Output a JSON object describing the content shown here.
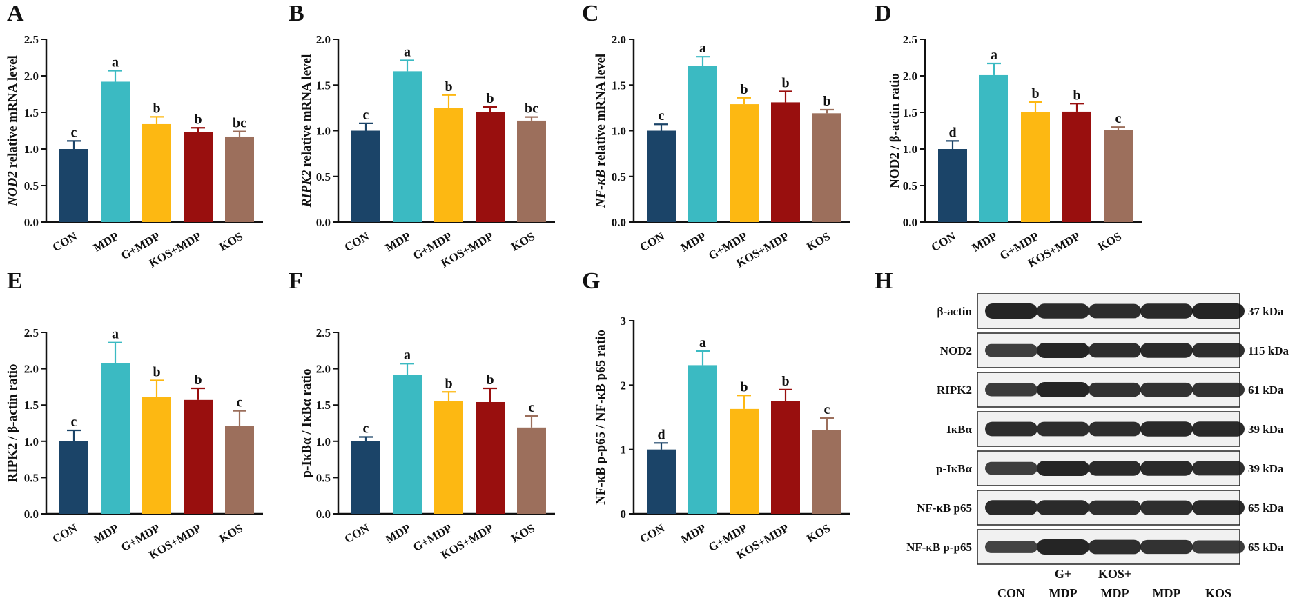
{
  "colors": {
    "CON": "#1b4468",
    "MDP": "#3bbac2",
    "G+MDP": "#fdb812",
    "KOS+MDP": "#990f0e",
    "KOS": "#9c6f5c",
    "axis": "#111111"
  },
  "chart_data": [
    {
      "panel": "A",
      "type": "bar",
      "ylabel_italic": "NOD2",
      "ylabel_rest": " relative mRNA level",
      "categories": [
        "CON",
        "MDP",
        "G+MDP",
        "KOS+MDP",
        "KOS"
      ],
      "values": [
        1.0,
        1.92,
        1.34,
        1.23,
        1.17
      ],
      "errors": [
        0.11,
        0.15,
        0.1,
        0.06,
        0.07
      ],
      "letters": [
        "c",
        "a",
        "b",
        "b",
        "bc"
      ],
      "ylim": [
        0,
        2.5
      ],
      "ticks": [
        "0.0",
        "0.5",
        "1.0",
        "1.5",
        "2.0",
        "2.5"
      ]
    },
    {
      "panel": "B",
      "type": "bar",
      "ylabel_italic": "RIPK2",
      "ylabel_rest": " relative mRNA level",
      "categories": [
        "CON",
        "MDP",
        "G+MDP",
        "KOS+MDP",
        "KOS"
      ],
      "values": [
        1.0,
        1.65,
        1.25,
        1.2,
        1.11
      ],
      "errors": [
        0.08,
        0.12,
        0.14,
        0.06,
        0.04
      ],
      "letters": [
        "c",
        "a",
        "b",
        "b",
        "bc"
      ],
      "ylim": [
        0,
        2.0
      ],
      "ticks": [
        "0.0",
        "0.5",
        "1.0",
        "1.5",
        "2.0"
      ]
    },
    {
      "panel": "C",
      "type": "bar",
      "ylabel_italic": "NF-κB",
      "ylabel_rest": " relative mRNA level",
      "categories": [
        "CON",
        "MDP",
        "G+MDP",
        "KOS+MDP",
        "KOS"
      ],
      "values": [
        1.0,
        1.71,
        1.29,
        1.31,
        1.19
      ],
      "errors": [
        0.07,
        0.1,
        0.07,
        0.12,
        0.04
      ],
      "letters": [
        "c",
        "a",
        "b",
        "b",
        "b"
      ],
      "ylim": [
        0,
        2.0
      ],
      "ticks": [
        "0.0",
        "0.5",
        "1.0",
        "1.5",
        "2.0"
      ]
    },
    {
      "panel": "D",
      "type": "bar",
      "ylabel_italic": "",
      "ylabel_rest": "NOD2 / β-actin ratio",
      "categories": [
        "CON",
        "MDP",
        "G+MDP",
        "KOS+MDP",
        "KOS"
      ],
      "values": [
        1.0,
        2.01,
        1.5,
        1.51,
        1.26
      ],
      "errors": [
        0.11,
        0.16,
        0.14,
        0.11,
        0.04
      ],
      "letters": [
        "d",
        "a",
        "b",
        "b",
        "c"
      ],
      "ylim": [
        0,
        2.5
      ],
      "ticks": [
        "0.0",
        "0.5",
        "1.0",
        "1.5",
        "2.0",
        "2.5"
      ]
    },
    {
      "panel": "E",
      "type": "bar",
      "ylabel_italic": "",
      "ylabel_rest": "RIPK2 / β-actin ratio",
      "categories": [
        "CON",
        "MDP",
        "G+MDP",
        "KOS+MDP",
        "KOS"
      ],
      "values": [
        1.0,
        2.08,
        1.61,
        1.57,
        1.21
      ],
      "errors": [
        0.15,
        0.28,
        0.23,
        0.16,
        0.21
      ],
      "letters": [
        "c",
        "a",
        "b",
        "b",
        "c"
      ],
      "ylim": [
        0,
        2.5
      ],
      "ticks": [
        "0.0",
        "0.5",
        "1.0",
        "1.5",
        "2.0",
        "2.5"
      ]
    },
    {
      "panel": "F",
      "type": "bar",
      "ylabel_italic": "",
      "ylabel_rest": "p-IκBα / IκBα ratio",
      "categories": [
        "CON",
        "MDP",
        "G+MDP",
        "KOS+MDP",
        "KOS"
      ],
      "values": [
        1.0,
        1.92,
        1.55,
        1.54,
        1.19
      ],
      "errors": [
        0.06,
        0.15,
        0.13,
        0.19,
        0.16
      ],
      "letters": [
        "c",
        "a",
        "b",
        "b",
        "c"
      ],
      "ylim": [
        0,
        2.5
      ],
      "ticks": [
        "0.0",
        "0.5",
        "1.0",
        "1.5",
        "2.0",
        "2.5"
      ]
    },
    {
      "panel": "G",
      "type": "bar",
      "ylabel_italic": "",
      "ylabel_rest": "NF-κB p-p65 / NF-κB p65 ratio",
      "categories": [
        "CON",
        "MDP",
        "G+MDP",
        "KOS+MDP",
        "KOS"
      ],
      "values": [
        1.0,
        2.31,
        1.63,
        1.75,
        1.3
      ],
      "errors": [
        0.1,
        0.22,
        0.21,
        0.18,
        0.19
      ],
      "letters": [
        "d",
        "a",
        "b",
        "b",
        "c"
      ],
      "ylim": [
        0,
        3
      ],
      "ticks": [
        "0",
        "1",
        "2",
        "3"
      ]
    }
  ],
  "blot": {
    "panel": "H",
    "rows": [
      {
        "protein": "β-actin",
        "size": "37 kDa",
        "intensities": [
          1.0,
          0.95,
          0.9,
          0.95,
          1.0
        ]
      },
      {
        "protein": "NOD2",
        "size": "115 kDa",
        "intensities": [
          0.7,
          1.0,
          0.9,
          0.95,
          0.9
        ]
      },
      {
        "protein": "RIPK2",
        "size": "61 kDa",
        "intensities": [
          0.75,
          1.0,
          0.85,
          0.85,
          0.85
        ]
      },
      {
        "protein": "IκBα",
        "size": "39 kDa",
        "intensities": [
          0.9,
          0.9,
          0.9,
          0.95,
          0.95
        ]
      },
      {
        "protein": "p-IκBα",
        "size": "39 kDa",
        "intensities": [
          0.7,
          1.0,
          0.95,
          0.95,
          0.9
        ]
      },
      {
        "protein": "NF-κB p65",
        "size": "65 kDa",
        "intensities": [
          0.95,
          0.95,
          0.9,
          0.9,
          0.95
        ]
      },
      {
        "protein": "NF-κB p-p65",
        "size": "65 kDa",
        "intensities": [
          0.65,
          1.0,
          0.9,
          0.85,
          0.75
        ]
      }
    ],
    "lanes": [
      {
        "line1": "",
        "line2": "CON"
      },
      {
        "line1": "G+",
        "line2": "MDP"
      },
      {
        "line1": "KOS+",
        "line2": "MDP"
      },
      {
        "line1": "",
        "line2": "MDP"
      },
      {
        "line1": "",
        "line2": "KOS"
      }
    ]
  }
}
